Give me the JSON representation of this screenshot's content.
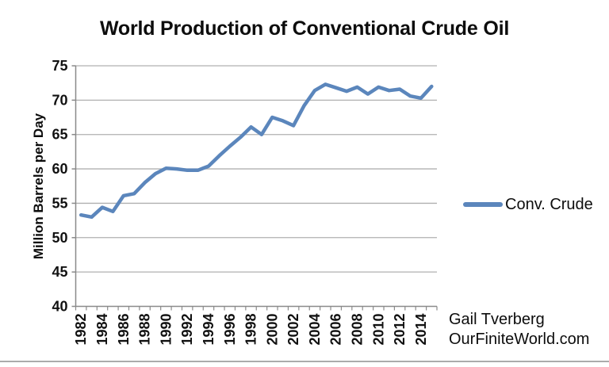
{
  "title": "World Production of Conventional Crude Oil",
  "attribution": {
    "line1": "Gail Tverberg",
    "line2": "OurFiniteWorld.com"
  },
  "colors": {
    "line": "#5b86bc",
    "grid": "#b0b0b0",
    "axis": "#8a8a8a",
    "text": "#111111",
    "divider": "#ababab"
  },
  "chart_data": {
    "type": "line",
    "title": "World Production of Conventional Crude Oil",
    "xlabel": "",
    "ylabel": "Million Barrels per Day",
    "ylim": [
      40,
      75
    ],
    "ytick_step": 5,
    "xtick_label_every": 2,
    "grid": true,
    "legend_position": "right",
    "x": [
      1982,
      1983,
      1984,
      1985,
      1986,
      1987,
      1988,
      1989,
      1990,
      1991,
      1992,
      1993,
      1994,
      1995,
      1996,
      1997,
      1998,
      1999,
      2000,
      2001,
      2002,
      2003,
      2004,
      2005,
      2006,
      2007,
      2008,
      2009,
      2010,
      2011,
      2012,
      2013,
      2014,
      2015
    ],
    "series": [
      {
        "name": "Conv. Crude",
        "color": "#5b86bc",
        "values": [
          53.3,
          53.0,
          54.4,
          53.8,
          56.1,
          56.4,
          58.0,
          59.3,
          60.1,
          60.0,
          59.8,
          59.8,
          60.4,
          61.9,
          63.3,
          64.6,
          66.1,
          65.0,
          67.5,
          67.0,
          66.3,
          69.2,
          71.4,
          72.3,
          71.8,
          71.3,
          71.9,
          70.9,
          71.9,
          71.4,
          71.6,
          70.6,
          70.3,
          72.0
        ]
      }
    ]
  }
}
